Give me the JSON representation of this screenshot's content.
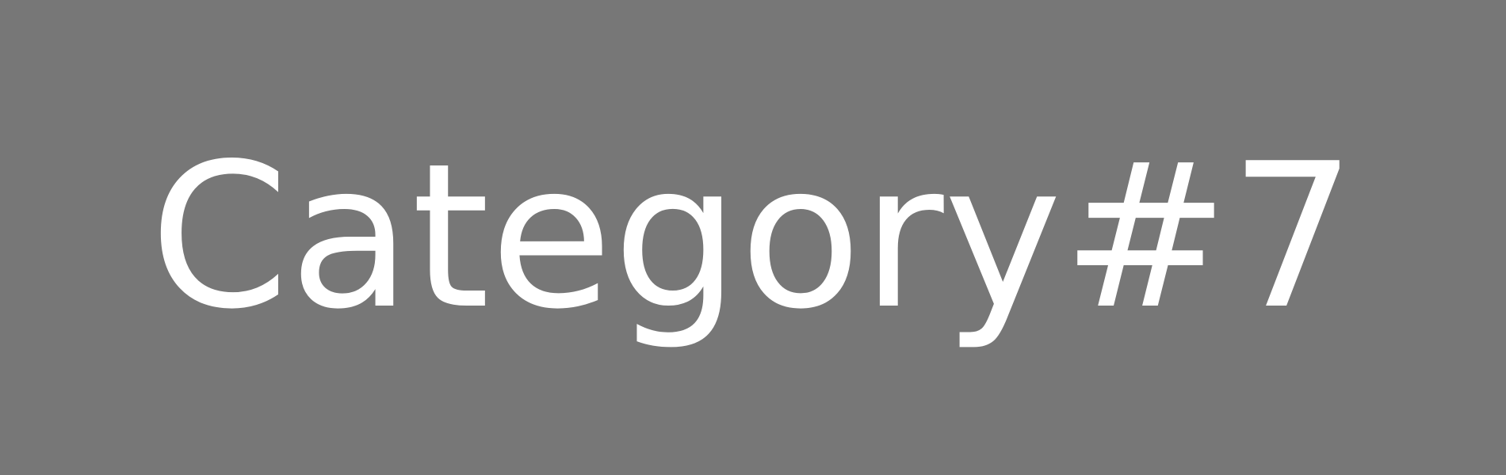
{
  "placeholder": {
    "text": "Category#7",
    "background_color": "#777777",
    "text_color": "#ffffff"
  }
}
